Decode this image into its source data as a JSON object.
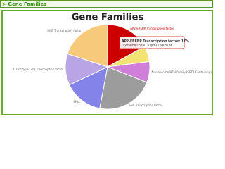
{
  "header": "> Gene Families",
  "chart_data": {
    "type": "pie",
    "title": "Gene Families",
    "categories": [
      "AP2-EREBP Transcription factor",
      null,
      "Nucleosome/HTH family (SET2 Containing)",
      "SBP Transcription factor",
      "PHLL",
      "C2H2-type (Zn) Transcription factor",
      "MYB Transcription factor"
    ],
    "values": [
      17,
      6,
      8,
      22,
      15,
      12,
      20
    ],
    "colors": [
      "#cc0000",
      "#f3e373",
      "#cf7fd8",
      "#9c9c9c",
      "#8383ea",
      "#b9a4e6",
      "#f7c97a"
    ],
    "tooltip": {
      "title": "AP2-EREBP Transcription factor: 17%",
      "text": "Glyma09g15550, Glyma11g05136"
    }
  }
}
